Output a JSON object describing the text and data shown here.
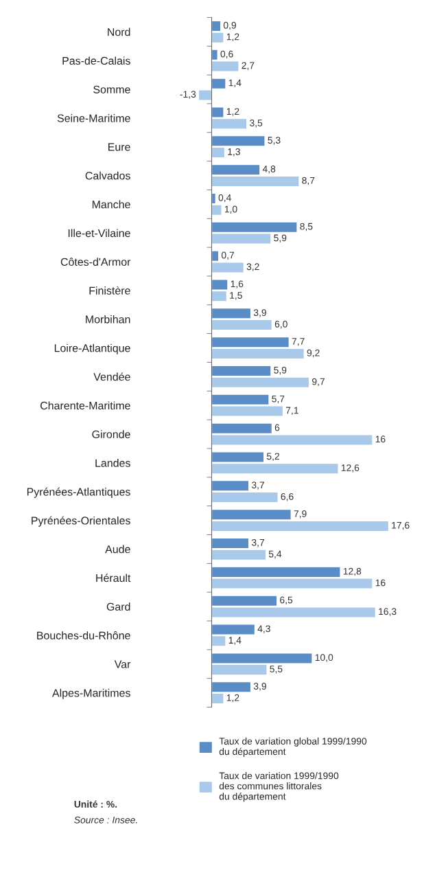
{
  "chart_data": {
    "type": "bar",
    "orientation": "horizontal",
    "categories": [
      "Nord",
      "Pas-de-Calais",
      "Somme",
      "Seine-Maritime",
      "Eure",
      "Calvados",
      "Manche",
      "Ille-et-Vilaine",
      "Côtes-d'Armor",
      "Finistère",
      "Morbihan",
      "Loire-Atlantique",
      "Vendée",
      "Charente-Maritime",
      "Gironde",
      "Landes",
      "Pyrénées-Atlantiques",
      "Pyrénées-Orientales",
      "Aude",
      "Hérault",
      "Gard",
      "Bouches-du-Rhône",
      "Var",
      "Alpes-Maritimes"
    ],
    "series": [
      {
        "name": "Taux de variation global 1999/1990\ndu département",
        "color": "#5a8dc8",
        "values": [
          0.9,
          0.6,
          1.4,
          1.2,
          5.3,
          4.8,
          0.4,
          8.5,
          0.7,
          1.6,
          3.9,
          7.7,
          5.9,
          5.7,
          6,
          5.2,
          3.7,
          7.9,
          3.7,
          12.8,
          6.5,
          4.3,
          10.0,
          3.9
        ],
        "value_labels": [
          "0,9",
          "0,6",
          "1,4",
          "1,2",
          "5,3",
          "4,8",
          "0,4",
          "8,5",
          "0,7",
          "1,6",
          "3,9",
          "7,7",
          "5,9",
          "5,7",
          "6",
          "5,2",
          "3,7",
          "7,9",
          "3,7",
          "12,8",
          "6,5",
          "4,3",
          "10,0",
          "3,9"
        ]
      },
      {
        "name": "Taux de variation 1999/1990\ndes communes littorales\ndu département",
        "color": "#a8c9ea",
        "values": [
          1.2,
          2.7,
          -1.3,
          3.5,
          1.3,
          8.7,
          1.0,
          5.9,
          3.2,
          1.5,
          6.0,
          9.2,
          9.7,
          7.1,
          16,
          12.6,
          6.6,
          17.6,
          5.4,
          16,
          16.3,
          1.4,
          5.5,
          1.2
        ],
        "value_labels": [
          "1,2",
          "2,7",
          "-1,3",
          "3,5",
          "1,3",
          "8,7",
          "1,0",
          "5,9",
          "3,2",
          "1,5",
          "6,0",
          "9,2",
          "9,7",
          "7,1",
          "16",
          "12,6",
          "6,6",
          "17,6",
          "5,4",
          "16",
          "16,3",
          "1,4",
          "5,5",
          "1,2"
        ]
      }
    ],
    "tick_labels": "y",
    "legend": "bottom",
    "grid": false,
    "annotations": [
      "Unité : %.",
      "Source : Insee."
    ]
  }
}
